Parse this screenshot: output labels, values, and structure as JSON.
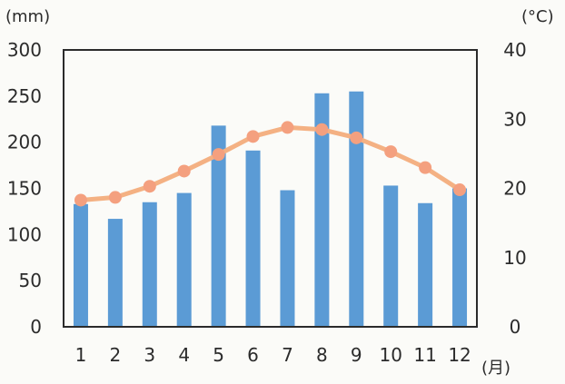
{
  "chart_data": {
    "type": "bar",
    "categories": [
      "1",
      "2",
      "3",
      "4",
      "5",
      "6",
      "7",
      "8",
      "9",
      "10",
      "11",
      "12"
    ],
    "series": [
      {
        "type": "bar",
        "axis": "left",
        "values": [
          133,
          117,
          135,
          145,
          218,
          191,
          148,
          253,
          255,
          153,
          134,
          150
        ]
      },
      {
        "type": "line",
        "axis": "right",
        "values": [
          18.3,
          18.7,
          20.3,
          22.5,
          24.9,
          27.5,
          28.8,
          28.5,
          27.3,
          25.3,
          23.0,
          19.8
        ]
      }
    ],
    "left_axis": {
      "unit": "(mm)",
      "min": 0,
      "max": 300,
      "ticks": [
        "0",
        "50",
        "100",
        "150",
        "200",
        "250",
        "300"
      ]
    },
    "right_axis": {
      "unit": "(°C)",
      "min": 0,
      "max": 40,
      "ticks": [
        "0",
        "10",
        "20",
        "30",
        "40"
      ]
    },
    "x_axis": {
      "unit": "(月)"
    },
    "grid": false,
    "legend": "none",
    "colors": {
      "bar": "#5b9bd5",
      "line": "#f4b183",
      "marker": "#f4a07f"
    }
  }
}
